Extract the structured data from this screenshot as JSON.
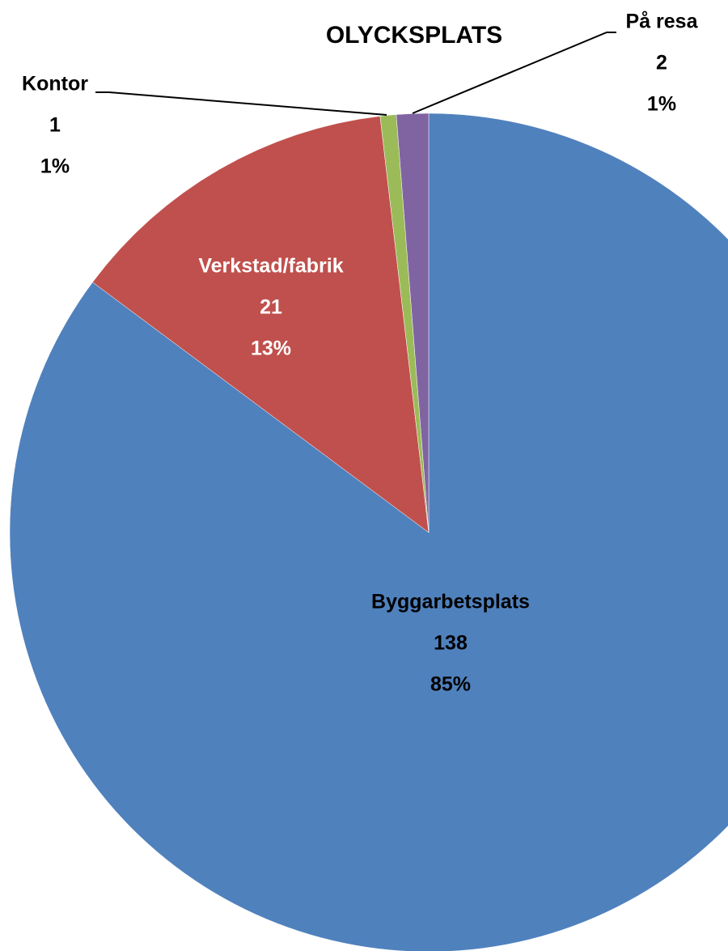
{
  "chart_data": {
    "type": "pie",
    "title": "OLYCKSPLATS",
    "categories": [
      "Byggarbetsplats",
      "Verkstad/fabrik",
      "Kontor",
      "På resa"
    ],
    "values": [
      138,
      21,
      1,
      2
    ],
    "percent_labels": [
      "85%",
      "13%",
      "1%",
      "1%"
    ],
    "colors": [
      "#4f81bd",
      "#c0504d",
      "#9bbb59",
      "#8064a2"
    ]
  }
}
